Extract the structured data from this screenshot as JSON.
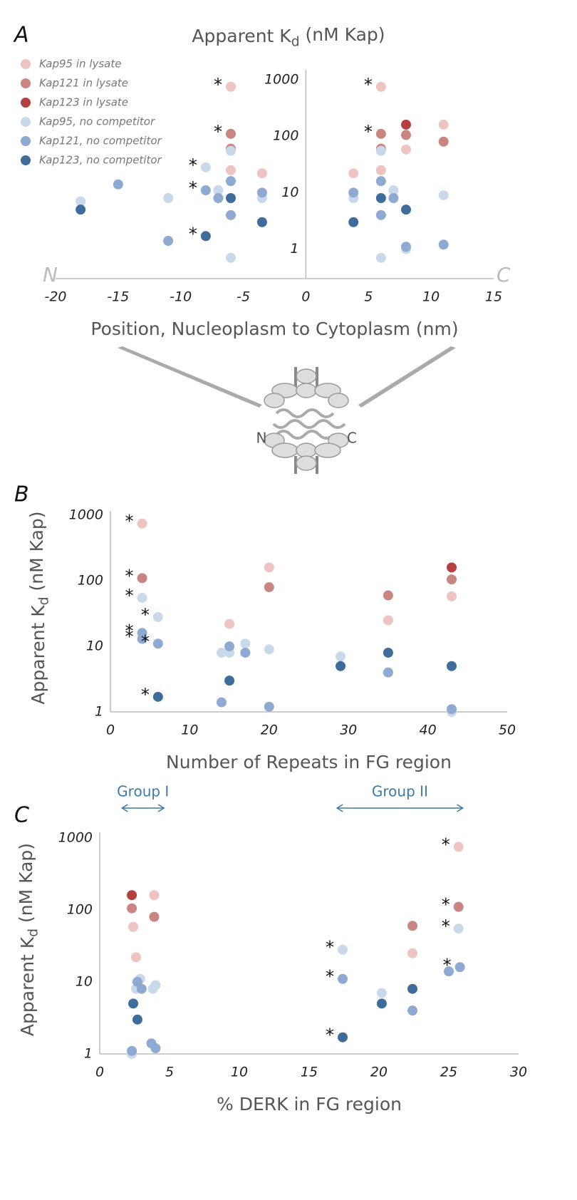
{
  "chart_data": [
    {
      "type": "scatter",
      "panel": "A",
      "title": [
        "Apparent K",
        "d",
        " (nM Kap)"
      ],
      "xlabel": "Position, Nucleoplasm to Cytoplasm (nm)",
      "corner_labels": [
        "N",
        "C"
      ],
      "diagram_labels": [
        "N",
        "C"
      ],
      "log_y": true,
      "legend": "top-left",
      "star_label": "*",
      "xlim": [
        -20,
        15
      ],
      "xticks": [
        -20,
        -15,
        -10,
        -5,
        0,
        5,
        10,
        15
      ],
      "ylim": [
        0.3,
        2000
      ],
      "yticks": [
        1,
        10,
        100,
        1000
      ],
      "series": [
        {
          "name": "Kap95 in lysate",
          "color": "#efc4c0",
          "x": [
            -6,
            -6,
            -3.5,
            3.8,
            6,
            6,
            8,
            11
          ],
          "values": [
            750,
            25,
            22,
            22,
            750,
            25,
            58,
            160
          ],
          "starred": [
            true,
            false,
            false,
            false,
            true,
            false,
            false,
            false
          ]
        },
        {
          "name": "Kap121 in lysate",
          "color": "#c98580",
          "x": [
            -6,
            -6,
            6,
            6,
            8,
            11
          ],
          "values": [
            110,
            60,
            110,
            60,
            105,
            80
          ],
          "starred": [
            true,
            false,
            true,
            false,
            false,
            false
          ]
        },
        {
          "name": "Kap123 in lysate",
          "color": "#b5413e",
          "x": [
            8
          ],
          "values": [
            160
          ],
          "starred": [
            false
          ]
        },
        {
          "name": "Kap95, no competitor",
          "color": "#c9d9ec",
          "x": [
            -18,
            -11,
            -8,
            -7,
            -6,
            -6,
            -3.5,
            3.8,
            6,
            6,
            7,
            8,
            11
          ],
          "values": [
            7,
            8,
            28,
            11,
            55,
            0.7,
            8,
            8,
            55,
            0.7,
            11,
            1,
            9
          ],
          "starred": [
            false,
            false,
            true,
            false,
            false,
            false,
            false,
            false,
            false,
            false,
            false,
            false,
            false
          ]
        },
        {
          "name": "Kap121, no competitor",
          "color": "#8eaad3",
          "x": [
            -15,
            -11,
            -8,
            -7,
            -6,
            -6,
            -3.5,
            3.8,
            6,
            6,
            7,
            8,
            11
          ],
          "values": [
            14,
            1.4,
            11,
            8,
            16,
            4,
            10,
            10,
            16,
            4,
            8,
            1.1,
            1.2
          ],
          "starred": [
            false,
            false,
            true,
            false,
            false,
            false,
            false,
            false,
            false,
            false,
            false,
            false,
            false
          ]
        },
        {
          "name": "Kap123, no competitor",
          "color": "#3e6d9c",
          "x": [
            -18,
            -8,
            -6,
            -3.5,
            3.8,
            6,
            8
          ],
          "values": [
            5,
            1.7,
            8,
            3,
            3,
            8,
            5
          ],
          "starred": [
            false,
            true,
            false,
            false,
            false,
            false,
            false
          ]
        }
      ]
    },
    {
      "type": "scatter",
      "panel": "B",
      "ylabel": [
        "Apparent K",
        "d",
        " (nM Kap)"
      ],
      "xlabel": "Number of Repeats in FG region",
      "log_y": true,
      "star_label": "*",
      "xlim": [
        0,
        50
      ],
      "xticks": [
        0,
        10,
        20,
        30,
        40,
        50
      ],
      "ylim": [
        1,
        1500
      ],
      "yticks": [
        1,
        10,
        100,
        1000
      ],
      "series": [
        {
          "color": "#efc4c0",
          "x": [
            4,
            15,
            20,
            35,
            43
          ],
          "values": [
            750,
            22,
            160,
            25,
            58
          ],
          "starred": [
            true,
            false,
            false,
            false,
            false
          ]
        },
        {
          "color": "#c98580",
          "x": [
            4,
            20,
            35,
            43
          ],
          "values": [
            110,
            80,
            60,
            105
          ],
          "starred": [
            true,
            false,
            false,
            false
          ]
        },
        {
          "color": "#b5413e",
          "x": [
            43
          ],
          "values": [
            160
          ],
          "starred": [
            false
          ]
        },
        {
          "color": "#c9d9ec",
          "x": [
            4,
            6,
            14,
            15,
            17,
            20,
            29,
            43
          ],
          "values": [
            55,
            28,
            8,
            8,
            11,
            9,
            7,
            1
          ],
          "starred": [
            true,
            true,
            false,
            false,
            false,
            false,
            false,
            false
          ]
        },
        {
          "color": "#8eaad3",
          "x": [
            4,
            4,
            6,
            14,
            15,
            17,
            20,
            35,
            43
          ],
          "values": [
            16,
            13,
            11,
            1.4,
            10,
            8,
            1.2,
            4,
            1.1
          ],
          "starred": [
            true,
            true,
            true,
            false,
            false,
            false,
            false,
            false,
            false
          ]
        },
        {
          "color": "#3e6d9c",
          "x": [
            6,
            15,
            29,
            35,
            43
          ],
          "values": [
            1.7,
            3,
            5,
            8,
            5
          ],
          "starred": [
            true,
            false,
            false,
            false,
            false
          ]
        }
      ]
    },
    {
      "type": "scatter",
      "panel": "C",
      "ylabel": [
        "Apparent K",
        "d",
        " (nM Kap)"
      ],
      "xlabel": "% DERK in FG region",
      "log_y": true,
      "star_label": "*",
      "groups": [
        {
          "label": "Group I",
          "range": [
            1.6,
            4.6
          ]
        },
        {
          "label": "Group II",
          "range": [
            17,
            26
          ]
        }
      ],
      "xlim": [
        0,
        30
      ],
      "xticks": [
        0,
        5,
        10,
        15,
        20,
        25,
        30
      ],
      "ylim": [
        1,
        1500
      ],
      "yticks": [
        1,
        10,
        100,
        1000
      ],
      "series": [
        {
          "color": "#efc4c0",
          "x": [
            2.4,
            2.6,
            3.9,
            22.4,
            25.7
          ],
          "values": [
            58,
            22,
            160,
            25,
            750
          ],
          "starred": [
            false,
            false,
            false,
            false,
            true
          ]
        },
        {
          "color": "#c98580",
          "x": [
            2.3,
            3.9,
            22.4,
            25.7
          ],
          "values": [
            105,
            80,
            60,
            110
          ],
          "starred": [
            false,
            false,
            false,
            true
          ]
        },
        {
          "color": "#b5413e",
          "x": [
            2.3
          ],
          "values": [
            160
          ],
          "starred": [
            false
          ]
        },
        {
          "color": "#c9d9ec",
          "x": [
            2.3,
            2.6,
            2.9,
            3.8,
            4,
            17.4,
            20.2,
            25.7
          ],
          "values": [
            1,
            8,
            11,
            8,
            9,
            28,
            7,
            55
          ],
          "starred": [
            false,
            false,
            false,
            false,
            false,
            true,
            false,
            true
          ]
        },
        {
          "color": "#8eaad3",
          "x": [
            2.3,
            2.7,
            3,
            3.7,
            4,
            17.4,
            22.4,
            25,
            25.8
          ],
          "values": [
            1.1,
            10,
            8,
            1.4,
            1.2,
            11,
            4,
            14,
            16
          ],
          "starred": [
            false,
            false,
            false,
            false,
            false,
            true,
            false,
            false,
            true
          ]
        },
        {
          "color": "#3e6d9c",
          "x": [
            2.4,
            2.7,
            17.4,
            20.2,
            22.4
          ],
          "values": [
            5,
            3,
            1.7,
            5,
            8
          ],
          "starred": [
            false,
            false,
            true,
            false,
            false
          ]
        }
      ]
    }
  ]
}
